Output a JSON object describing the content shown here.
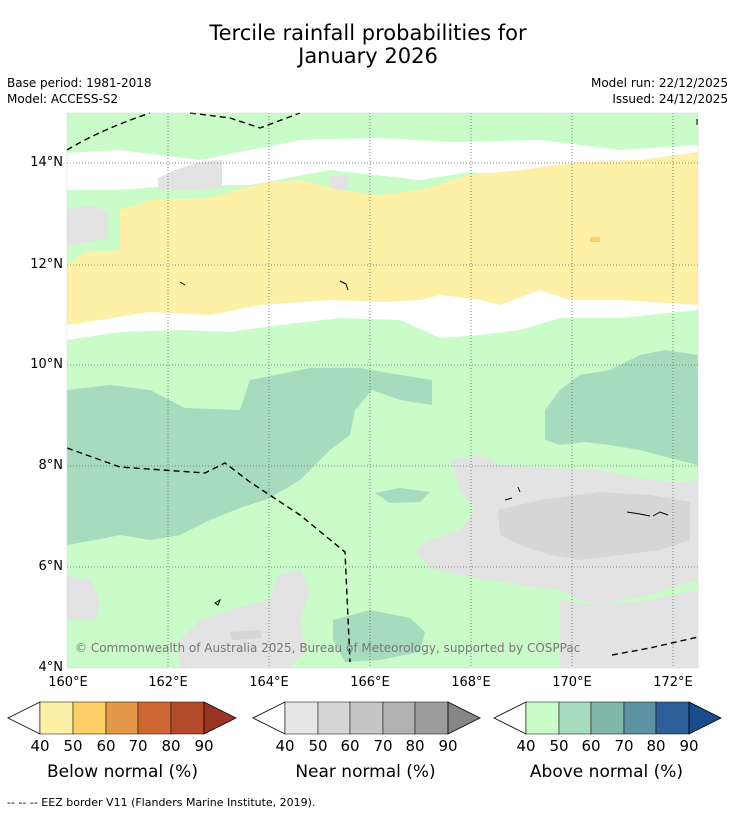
{
  "title": {
    "line1": "Tercile rainfall probabilities for",
    "line2": "January 2026"
  },
  "base_period": "Base period: 1981-2018",
  "model": "Model: ACCESS-S2",
  "model_run": "Model run: 22/12/2025",
  "issued": "Issued: 24/12/2025",
  "y_ticks": [
    "14°N",
    "12°N",
    "10°N",
    "8°N",
    "6°N",
    "4°N"
  ],
  "x_ticks": [
    "160°E",
    "162°E",
    "164°E",
    "166°E",
    "168°E",
    "170°E",
    "172°E"
  ],
  "copyright": "© Commonwealth of Australia 2025, Bureau of Meteorology, supported by COSPPac",
  "legends": [
    {
      "label": "Below normal (%)",
      "ticks": [
        "40",
        "50",
        "60",
        "70",
        "80",
        "90"
      ],
      "colors": [
        "#fff0a8",
        "#fcd067",
        "#e3984a",
        "#cf6734",
        "#b34b2a",
        "#9a3523"
      ]
    },
    {
      "label": "Near normal (%)",
      "ticks": [
        "40",
        "50",
        "60",
        "70",
        "80",
        "90"
      ],
      "colors": [
        "#e6e6e6",
        "#d6d6d6",
        "#c5c5c5",
        "#b2b2b2",
        "#9c9c9c",
        "#868686"
      ]
    },
    {
      "label": "Above normal (%)",
      "ticks": [
        "40",
        "50",
        "60",
        "70",
        "80",
        "90"
      ],
      "colors": [
        "#c9fcc9",
        "#a6dbbd",
        "#80b7a9",
        "#5d93a3",
        "#2f5f99",
        "#1a4b8a"
      ]
    }
  ],
  "footer": "--  --  -- EEZ border V11 (Flanders Marine Institute, 2019)."
}
